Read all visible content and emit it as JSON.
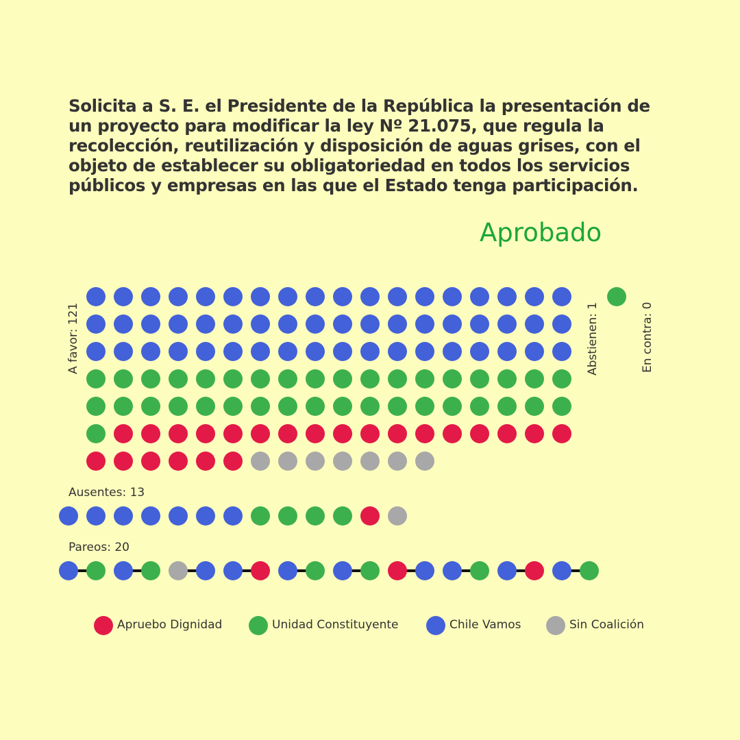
{
  "title": "Solicita a S. E. el Presidente de la República la presentación de un proyecto para modificar la ley Nº 21.075, que regula la recolección, reutilización y disposición de aguas grises, con el objeto de establecer su obligatoriedad en todos los servicios públicos y empresas en las que el Estado tenga participación.",
  "result": "Aprobado",
  "result_color": "#1ca63a",
  "colors": {
    "Apruebo Dignidad": "#e31a48",
    "Unidad Constituyente": "#3db04e",
    "Chile Vamos": "#4361d8",
    "Sin Coalición": "#a8a8a8"
  },
  "chart_data": {
    "type": "dot-matrix",
    "groups": {
      "a_favor": {
        "label": "A favor: 121",
        "count": 121,
        "composition": [
          {
            "coalition": "Chile Vamos",
            "count": 54
          },
          {
            "coalition": "Unidad Constituyente",
            "count": 37
          },
          {
            "coalition": "Apruebo Dignidad",
            "count": 23
          },
          {
            "coalition": "Sin Coalición",
            "count": 7
          }
        ]
      },
      "abstienen": {
        "label": "Abstienen: 1",
        "count": 1,
        "composition": [
          {
            "coalition": "Unidad Constituyente",
            "count": 1
          }
        ]
      },
      "en_contra": {
        "label": "En contra: 0",
        "count": 0,
        "composition": []
      },
      "ausentes": {
        "label": "Ausentes: 13",
        "count": 13,
        "composition": [
          {
            "coalition": "Chile Vamos",
            "count": 7
          },
          {
            "coalition": "Unidad Constituyente",
            "count": 4
          },
          {
            "coalition": "Apruebo Dignidad",
            "count": 1
          },
          {
            "coalition": "Sin Coalición",
            "count": 1
          }
        ]
      },
      "pareos": {
        "label": "Pareos: 20",
        "count": 20,
        "sequence": [
          "Chile Vamos",
          "Unidad Constituyente",
          "Chile Vamos",
          "Unidad Constituyente",
          "Sin Coalición",
          "Chile Vamos",
          "Chile Vamos",
          "Apruebo Dignidad",
          "Chile Vamos",
          "Unidad Constituyente",
          "Chile Vamos",
          "Unidad Constituyente",
          "Apruebo Dignidad",
          "Chile Vamos",
          "Chile Vamos",
          "Unidad Constituyente",
          "Chile Vamos",
          "Apruebo Dignidad",
          "Chile Vamos",
          "Unidad Constituyente"
        ]
      }
    }
  },
  "legend": [
    {
      "label": "Apruebo Dignidad",
      "color": "#e31a48"
    },
    {
      "label": "Unidad Constituyente",
      "color": "#3db04e"
    },
    {
      "label": "Chile Vamos",
      "color": "#4361d8"
    },
    {
      "label": "Sin Coalición",
      "color": "#a8a8a8"
    }
  ]
}
